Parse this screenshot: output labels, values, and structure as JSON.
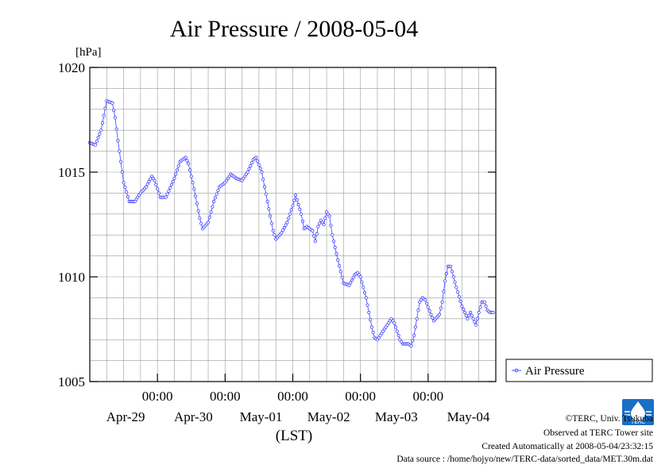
{
  "chart_data": {
    "type": "line",
    "title": "Air Pressure / 2008-05-04",
    "ylabel": "[hPa]",
    "xlabel": "(LST)",
    "ylim": [
      1005,
      1020
    ],
    "y_ticks": [
      1005,
      1010,
      1015,
      1020
    ],
    "y_tick_labels": [
      "1005",
      "1010",
      "1015",
      "1020"
    ],
    "x_range_hours": [
      0,
      144
    ],
    "x_unit": "hours since 2008-04-28 14:00 LST",
    "x_ticks": [
      {
        "hour": 24,
        "time": "00:00",
        "date": "Apr-29"
      },
      {
        "hour": 48,
        "time": "00:00",
        "date": "Apr-30"
      },
      {
        "hour": 72,
        "time": "00:00",
        "date": "May-01"
      },
      {
        "hour": 96,
        "time": "00:00",
        "date": "May-02"
      },
      {
        "hour": 120,
        "time": "00:00",
        "date": "May-03"
      }
    ],
    "x_extra_date_label": {
      "hour": 134,
      "date": "May-04"
    },
    "grid": true,
    "legend": "right",
    "series": [
      {
        "name": "Air Pressure",
        "color": "#4040ff",
        "marker": "open-circle",
        "points": [
          [
            0,
            1016.4
          ],
          [
            2,
            1016.3
          ],
          [
            4,
            1017.0
          ],
          [
            6,
            1018.4
          ],
          [
            8,
            1018.3
          ],
          [
            9,
            1017.6
          ],
          [
            10,
            1016.5
          ],
          [
            12,
            1014.5
          ],
          [
            14,
            1013.6
          ],
          [
            16,
            1013.6
          ],
          [
            18,
            1014.0
          ],
          [
            20,
            1014.3
          ],
          [
            22,
            1014.8
          ],
          [
            23,
            1014.6
          ],
          [
            25,
            1013.8
          ],
          [
            27,
            1013.8
          ],
          [
            28,
            1014.1
          ],
          [
            30,
            1014.7
          ],
          [
            32,
            1015.5
          ],
          [
            34,
            1015.7
          ],
          [
            35,
            1015.4
          ],
          [
            37,
            1014.2
          ],
          [
            39,
            1012.8
          ],
          [
            40,
            1012.3
          ],
          [
            42,
            1012.6
          ],
          [
            44,
            1013.6
          ],
          [
            46,
            1014.3
          ],
          [
            48,
            1014.5
          ],
          [
            50,
            1014.9
          ],
          [
            52,
            1014.7
          ],
          [
            54,
            1014.6
          ],
          [
            56,
            1015.0
          ],
          [
            58,
            1015.6
          ],
          [
            59,
            1015.7
          ],
          [
            61,
            1015.0
          ],
          [
            63,
            1013.6
          ],
          [
            65,
            1012.2
          ],
          [
            66,
            1011.8
          ],
          [
            68,
            1012.1
          ],
          [
            70,
            1012.6
          ],
          [
            72,
            1013.4
          ],
          [
            73,
            1013.9
          ],
          [
            75,
            1013.0
          ],
          [
            76,
            1012.3
          ],
          [
            77,
            1012.4
          ],
          [
            79,
            1012.2
          ],
          [
            80,
            1011.7
          ],
          [
            81,
            1012.4
          ],
          [
            82,
            1012.7
          ],
          [
            83,
            1012.5
          ],
          [
            84,
            1013.1
          ],
          [
            85,
            1012.9
          ],
          [
            86,
            1012.0
          ],
          [
            88,
            1010.8
          ],
          [
            90,
            1009.7
          ],
          [
            92,
            1009.6
          ],
          [
            94,
            1010.1
          ],
          [
            95,
            1010.2
          ],
          [
            96,
            1010.0
          ],
          [
            98,
            1009.0
          ],
          [
            100,
            1007.6
          ],
          [
            101,
            1007.1
          ],
          [
            102,
            1007.0
          ],
          [
            104,
            1007.4
          ],
          [
            106,
            1007.8
          ],
          [
            107,
            1008.0
          ],
          [
            108,
            1007.8
          ],
          [
            110,
            1007.0
          ],
          [
            111,
            1006.8
          ],
          [
            113,
            1006.8
          ],
          [
            114,
            1006.7
          ],
          [
            115,
            1007.2
          ],
          [
            116,
            1008.0
          ],
          [
            117,
            1008.8
          ],
          [
            118,
            1009.0
          ],
          [
            119,
            1008.9
          ],
          [
            121,
            1008.2
          ],
          [
            122,
            1007.9
          ],
          [
            124,
            1008.2
          ],
          [
            125,
            1008.8
          ],
          [
            126,
            1009.8
          ],
          [
            127,
            1010.5
          ],
          [
            128,
            1010.5
          ],
          [
            129,
            1010.0
          ],
          [
            130,
            1009.5
          ],
          [
            132,
            1008.6
          ],
          [
            133,
            1008.3
          ],
          [
            134,
            1008.0
          ],
          [
            135,
            1008.3
          ],
          [
            136,
            1008.0
          ],
          [
            137,
            1007.7
          ],
          [
            138,
            1008.3
          ],
          [
            139,
            1008.8
          ],
          [
            140,
            1008.8
          ],
          [
            141,
            1008.4
          ],
          [
            142,
            1008.3
          ],
          [
            143,
            1008.3
          ]
        ]
      }
    ]
  },
  "credits": {
    "copyright": "©TERC, Univ. Tsukuba",
    "site": "Observed at TERC Tower site",
    "created": "Created Automatically at 2008-05-04/23:32:15",
    "source": "Data source : /home/hojyo/new/TERC-data/sorted_data/MET.30m.dat"
  },
  "logo": {
    "text": "TERC",
    "color": "#1a6fc4"
  }
}
